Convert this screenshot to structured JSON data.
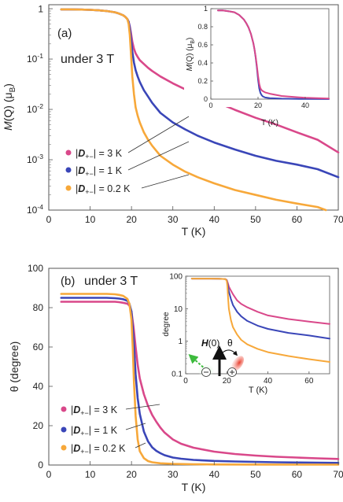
{
  "colors": {
    "D3": "#d9488a",
    "D1": "#3a46b8",
    "D02": "#f7a83a",
    "frame": "#555555",
    "arrow_green": "#3dbb3d",
    "arrow_red": "#e83a2a"
  },
  "legend": {
    "D3": "= 3 K",
    "D1": "= 1 K",
    "D02": "= 0.2 K",
    "symbol": "D",
    "subscript": "+−"
  },
  "chart_data": [
    {
      "id": "a-main",
      "type": "line",
      "panel_label": "(a)",
      "annotation": "under 3 T",
      "xlabel": "T (K)",
      "ylabel": "M(Q) (μB)",
      "ylabel_parts": {
        "M": "M",
        "Q": "(Q)",
        "unit": "(μ",
        "sub": "B",
        "close": ")"
      },
      "xlim": [
        0,
        70
      ],
      "ylim": [
        0.0001,
        1.2
      ],
      "yscale": "log",
      "xticks": [
        0,
        10,
        20,
        30,
        40,
        50,
        60,
        70
      ],
      "yticks": [
        {
          "v": 1,
          "base": "1",
          "exp": ""
        },
        {
          "v": 0.1,
          "base": "10",
          "exp": "-1"
        },
        {
          "v": 0.01,
          "base": "10",
          "exp": "-2"
        },
        {
          "v": 0.001,
          "base": "10",
          "exp": "-3"
        },
        {
          "v": 0.0001,
          "base": "10",
          "exp": "-4"
        }
      ],
      "series": [
        {
          "key": "D3",
          "x": [
            3,
            5,
            8,
            10,
            12,
            14,
            16,
            17,
            18,
            18.5,
            19,
            19.3,
            19.6,
            19.9,
            20.2,
            20.6,
            21,
            21.5,
            22,
            23,
            24,
            25,
            27,
            30,
            33,
            36,
            40,
            45,
            50,
            55,
            60,
            65,
            70
          ],
          "y": [
            0.97,
            0.97,
            0.96,
            0.95,
            0.93,
            0.9,
            0.85,
            0.8,
            0.74,
            0.69,
            0.62,
            0.55,
            0.45,
            0.32,
            0.22,
            0.16,
            0.13,
            0.11,
            0.095,
            0.08,
            0.067,
            0.058,
            0.045,
            0.033,
            0.025,
            0.019,
            0.0145,
            0.0098,
            0.0068,
            0.005,
            0.0035,
            0.0025,
            0.0014
          ]
        },
        {
          "key": "D1",
          "x": [
            3,
            5,
            8,
            10,
            12,
            14,
            16,
            17,
            18,
            18.5,
            19,
            19.3,
            19.6,
            19.9,
            20.2,
            20.6,
            21,
            21.5,
            22,
            23,
            24,
            25,
            27,
            30,
            33,
            36,
            40,
            45,
            50,
            55,
            60,
            65,
            70
          ],
          "y": [
            0.97,
            0.97,
            0.96,
            0.95,
            0.93,
            0.9,
            0.85,
            0.8,
            0.74,
            0.69,
            0.62,
            0.55,
            0.42,
            0.25,
            0.14,
            0.085,
            0.06,
            0.045,
            0.035,
            0.024,
            0.018,
            0.0135,
            0.0085,
            0.0055,
            0.004,
            0.003,
            0.0022,
            0.0016,
            0.0012,
            0.00095,
            0.0008,
            0.00065,
            0.00045
          ]
        },
        {
          "key": "D02",
          "x": [
            3,
            5,
            8,
            10,
            12,
            14,
            16,
            17,
            18,
            18.5,
            19,
            19.3,
            19.6,
            19.9,
            20.2,
            20.6,
            21,
            21.5,
            22,
            23,
            24,
            25,
            27,
            30,
            33,
            36,
            40,
            45,
            50,
            55,
            60,
            65,
            67
          ],
          "y": [
            0.97,
            0.97,
            0.96,
            0.95,
            0.93,
            0.9,
            0.85,
            0.8,
            0.74,
            0.69,
            0.62,
            0.5,
            0.3,
            0.12,
            0.045,
            0.02,
            0.011,
            0.0075,
            0.0055,
            0.0035,
            0.0025,
            0.0019,
            0.0012,
            0.0008,
            0.00058,
            0.00045,
            0.00034,
            0.00025,
            0.0002,
            0.00016,
            0.000135,
            0.000115,
            0.0001
          ]
        }
      ],
      "legend_position": "lower-left"
    },
    {
      "id": "a-inset",
      "type": "line",
      "xlabel": "T (K)",
      "ylabel": "M(Q) (μB)",
      "ylabel_parts": {
        "M": "M",
        "Q": "(Q)",
        "unit": "(μ",
        "sub": "B",
        "close": ")"
      },
      "xlim": [
        0,
        50
      ],
      "ylim": [
        0,
        1
      ],
      "xticks": [
        0,
        20,
        40
      ],
      "yticks": [
        0,
        0.2,
        0.4,
        0.6,
        0.8,
        1
      ],
      "ytick_labels": [
        "0",
        "0.2",
        "0.4",
        "0.6",
        "0.8",
        "1"
      ],
      "series": [
        {
          "key": "D1",
          "x": [
            3,
            5,
            8,
            10,
            12,
            14,
            15,
            16,
            17,
            18,
            18.5,
            19,
            19.5,
            20,
            20.5,
            21,
            21.5,
            22,
            23,
            25,
            30,
            40,
            50
          ],
          "y": [
            0.98,
            0.98,
            0.97,
            0.96,
            0.93,
            0.88,
            0.84,
            0.79,
            0.72,
            0.62,
            0.55,
            0.46,
            0.35,
            0.22,
            0.12,
            0.07,
            0.045,
            0.03,
            0.018,
            0.01,
            0.005,
            0.002,
            0.001
          ]
        },
        {
          "key": "D3",
          "x": [
            3,
            5,
            8,
            10,
            12,
            14,
            15,
            16,
            17,
            18,
            18.5,
            19,
            19.5,
            20,
            20.5,
            21,
            21.5,
            22,
            23,
            25,
            30,
            40,
            50
          ],
          "y": [
            0.98,
            0.98,
            0.97,
            0.96,
            0.93,
            0.88,
            0.84,
            0.79,
            0.72,
            0.62,
            0.55,
            0.47,
            0.37,
            0.26,
            0.17,
            0.12,
            0.1,
            0.09,
            0.075,
            0.06,
            0.035,
            0.015,
            0.006
          ]
        }
      ]
    },
    {
      "id": "b-main",
      "type": "line",
      "panel_label": "(b)",
      "annotation": "under 3 T",
      "xlabel": "T (K)",
      "ylabel": "θ (degree)",
      "xlim": [
        0,
        70
      ],
      "ylim": [
        0,
        100
      ],
      "xticks": [
        0,
        10,
        20,
        30,
        40,
        50,
        60,
        70
      ],
      "yticks": [
        0,
        20,
        40,
        60,
        80,
        100
      ],
      "series": [
        {
          "key": "D3",
          "x": [
            3,
            5,
            8,
            10,
            12,
            14,
            16,
            17,
            18,
            19,
            19.5,
            20,
            20.5,
            21,
            21.5,
            22,
            23,
            24,
            25,
            26,
            27,
            28,
            30,
            32,
            35,
            40,
            45,
            50,
            55,
            60,
            65,
            70
          ],
          "y": [
            83,
            83,
            83,
            83,
            83,
            83,
            83,
            82.8,
            82.5,
            82,
            81,
            78,
            70,
            60,
            51,
            44,
            36,
            30,
            25.5,
            22,
            19,
            16.5,
            13,
            10.8,
            8.8,
            6.8,
            5.6,
            4.8,
            4.2,
            3.8,
            3.4,
            3.1
          ]
        },
        {
          "key": "D1",
          "x": [
            3,
            5,
            8,
            10,
            12,
            14,
            16,
            17,
            18,
            19,
            19.5,
            20,
            20.5,
            21,
            21.5,
            22,
            23,
            24,
            25,
            26,
            27,
            28,
            30,
            32,
            35,
            40,
            45,
            50,
            55,
            60,
            65,
            70
          ],
          "y": [
            85,
            85,
            85,
            85,
            85,
            85,
            84.8,
            84.6,
            84.3,
            83.5,
            82,
            78,
            64,
            46,
            34,
            26,
            17,
            12,
            9,
            7.2,
            6,
            5,
            3.8,
            3.2,
            2.6,
            2.1,
            1.8,
            1.6,
            1.4,
            1.3,
            1.2,
            1.1
          ]
        },
        {
          "key": "D02",
          "x": [
            3,
            5,
            8,
            10,
            12,
            14,
            16,
            17,
            18,
            19,
            19.5,
            20,
            20.3,
            20.6,
            21,
            21.5,
            22,
            23,
            24,
            25,
            27,
            30,
            35,
            40,
            50,
            60,
            70
          ],
          "y": [
            87,
            87,
            87,
            87,
            87,
            87,
            86.8,
            86.5,
            86,
            84.5,
            82,
            74,
            60,
            42,
            25,
            13,
            7,
            3.5,
            2,
            1.4,
            0.9,
            0.6,
            0.4,
            0.3,
            0.25,
            0.2,
            0.2
          ]
        }
      ],
      "legend_position": "lower-left"
    },
    {
      "id": "b-inset",
      "type": "line",
      "xlabel": "T (K)",
      "ylabel": "degree",
      "xlim": [
        0,
        70
      ],
      "ylim": [
        0.1,
        100
      ],
      "yscale": "log",
      "xticks": [
        0,
        20,
        40,
        60
      ],
      "yticks": [
        0.1,
        1,
        10,
        100
      ],
      "ytick_labels": [
        "0.1",
        "1",
        "10",
        "100"
      ],
      "annotations": [
        "H(0)",
        "θ",
        "⊖",
        "⊕"
      ],
      "series": [
        {
          "key": "D3",
          "x": [
            3,
            8,
            12,
            16,
            18,
            19,
            19.5,
            20,
            20.5,
            21,
            22,
            23,
            25,
            27,
            30,
            35,
            40,
            50,
            60,
            70
          ],
          "y": [
            84,
            84,
            84,
            83,
            82.5,
            82,
            80,
            76,
            62,
            48,
            36,
            28,
            18,
            14,
            11,
            8,
            6.2,
            4.8,
            4,
            3.4
          ]
        },
        {
          "key": "D1",
          "x": [
            3,
            8,
            12,
            16,
            18,
            19,
            19.5,
            20,
            20.5,
            21,
            22,
            23,
            25,
            27,
            30,
            35,
            40,
            50,
            60,
            70
          ],
          "y": [
            84,
            84,
            84,
            83,
            82.5,
            82,
            80,
            74,
            52,
            34,
            20,
            13,
            8,
            5.8,
            4.2,
            3,
            2.4,
            1.8,
            1.5,
            1.2
          ]
        },
        {
          "key": "D02",
          "x": [
            3,
            8,
            12,
            16,
            18,
            19,
            19.5,
            20,
            20.3,
            20.6,
            21,
            22,
            23,
            25,
            27,
            30,
            35,
            40,
            50,
            60,
            70
          ],
          "y": [
            84,
            84,
            84,
            83,
            82.5,
            82,
            80,
            70,
            48,
            22,
            10,
            4.5,
            2.7,
            1.6,
            1.1,
            0.8,
            0.58,
            0.46,
            0.35,
            0.28,
            0.23
          ]
        }
      ]
    }
  ]
}
